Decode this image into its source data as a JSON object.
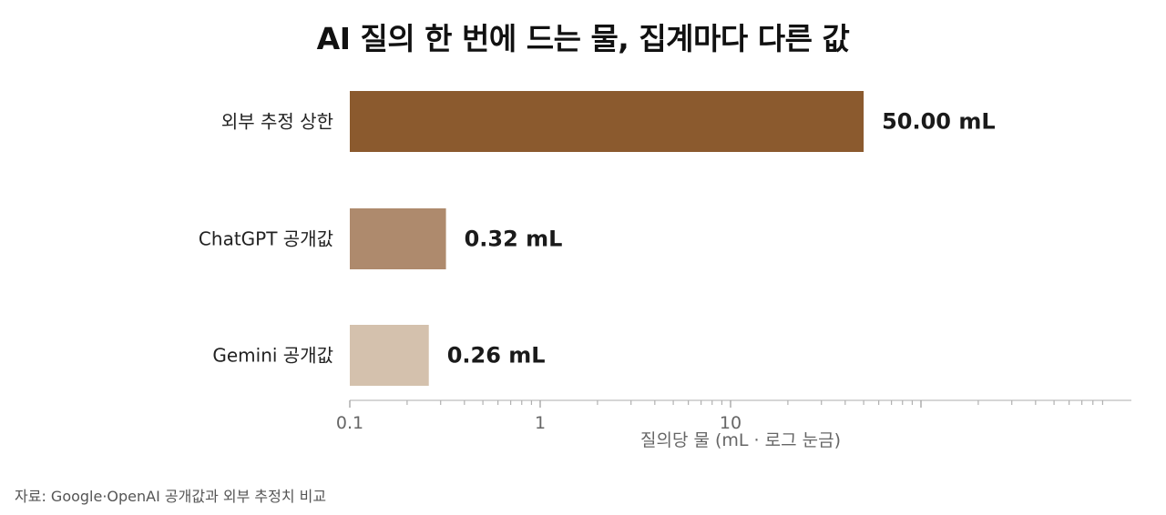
{
  "chart_data": {
    "type": "bar",
    "orientation": "horizontal",
    "title": "AI 질의 한 번에 드는 물, 집계마다 다른 값",
    "xlabel": "질의당 물 (mL · 로그 눈금)",
    "ylabel": "",
    "x_scale": "log",
    "xlim": [
      0.1,
      200
    ],
    "x_ticks": [
      {
        "value": 0.1,
        "label": "0.1"
      },
      {
        "value": 1,
        "label": "1"
      },
      {
        "value": 10,
        "label": "10"
      }
    ],
    "categories": [
      "외부 추정 상한",
      "ChatGPT 공개값",
      "Gemini 공개값"
    ],
    "values": [
      50.0,
      0.32,
      0.26
    ],
    "value_labels": [
      "50.00 mL",
      "0.32 mL",
      "0.26 mL"
    ],
    "bar_colors": [
      "#8b5a2e",
      "#ae8a6d",
      "#d4c1ad"
    ],
    "grid": false,
    "legend": "none"
  },
  "source": "자료: Google·OpenAI 공개값과 외부 추정치 비교"
}
